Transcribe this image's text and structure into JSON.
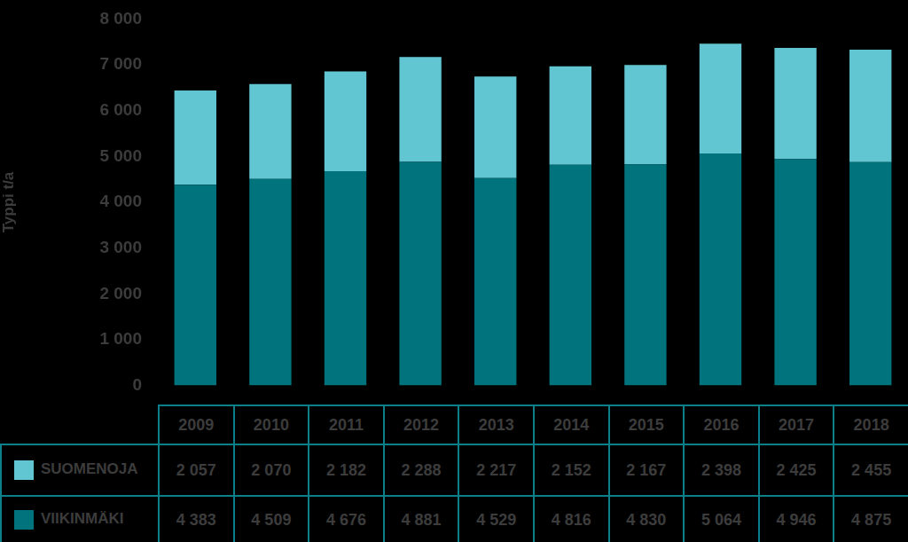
{
  "chart_data": {
    "type": "bar",
    "stacked": true,
    "y_label": "Typpi t/a",
    "categories": [
      "2009",
      "2010",
      "2011",
      "2012",
      "2013",
      "2014",
      "2015",
      "2016",
      "2017",
      "2018"
    ],
    "series": [
      {
        "name": "SUOMENOJA",
        "color": "#62c6d2",
        "values": [
          2057,
          2070,
          2182,
          2288,
          2217,
          2152,
          2167,
          2398,
          2425,
          2455
        ],
        "value_labels": [
          "2 057",
          "2 070",
          "2 182",
          "2 288",
          "2 217",
          "2 152",
          "2 167",
          "2 398",
          "2 425",
          "2 455"
        ]
      },
      {
        "name": "VIIKINMÄKI",
        "color": "#00737d",
        "values": [
          4383,
          4509,
          4676,
          4881,
          4529,
          4816,
          4830,
          5064,
          4946,
          4875
        ],
        "value_labels": [
          "4 383",
          "4 509",
          "4 676",
          "4 881",
          "4 529",
          "4 816",
          "4 830",
          "5 064",
          "4 946",
          "4 875"
        ]
      }
    ],
    "ylim": [
      0,
      8000
    ],
    "yticks": [
      0,
      {
        "value": 1000,
        "label": "1 000"
      },
      {
        "value": 2000,
        "label": "2 000"
      },
      {
        "value": 3000,
        "label": "3 000"
      },
      {
        "value": 4000,
        "label": "4 000"
      },
      {
        "value": 5000,
        "label": "5 000"
      },
      {
        "value": 6000,
        "label": "6 000"
      },
      {
        "value": 7000,
        "label": "7 000"
      },
      {
        "value": 8000,
        "label": "8 000"
      }
    ],
    "grid": false
  }
}
